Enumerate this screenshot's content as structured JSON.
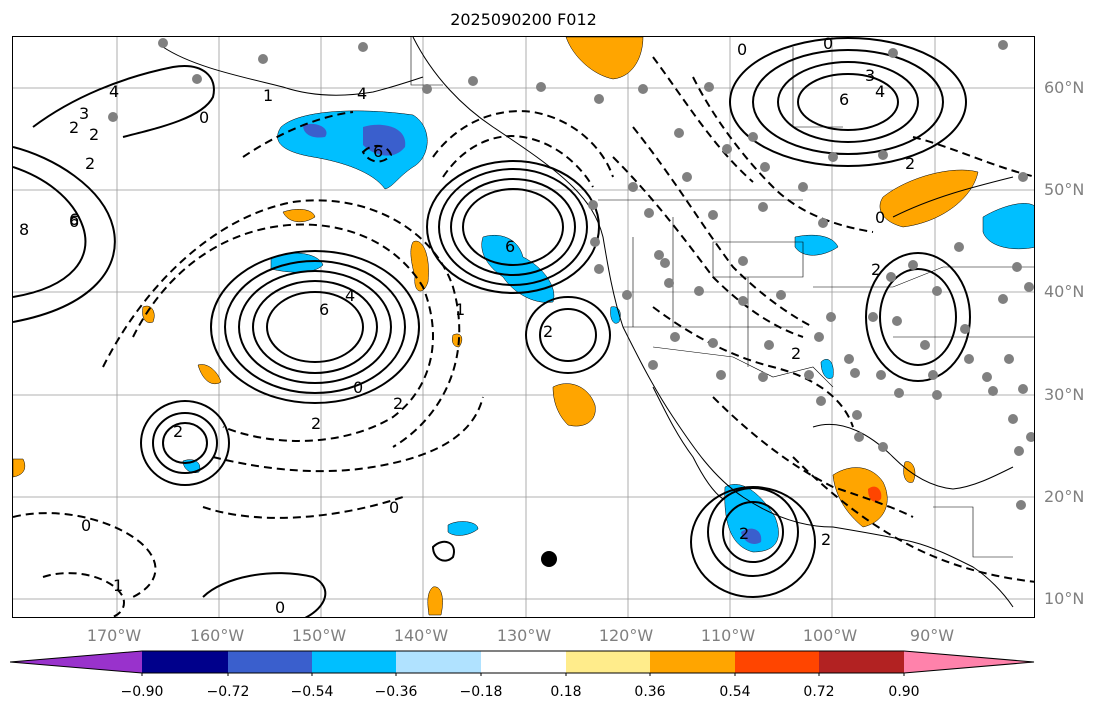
{
  "title": "2025090200 F012",
  "lat_labels": [
    "60°N",
    "50°N",
    "40°N",
    "30°N",
    "20°N",
    "10°N"
  ],
  "lon_labels": [
    "170°W",
    "160°W",
    "150°W",
    "140°W",
    "130°W",
    "120°W",
    "110°W",
    "100°W",
    "90°W"
  ],
  "colorbar": {
    "ticks": [
      "−0.90",
      "−0.72",
      "−0.54",
      "−0.36",
      "−0.18",
      "0.18",
      "0.36",
      "0.54",
      "0.72",
      "0.90"
    ],
    "colors": [
      "#9932cc",
      "#00008b",
      "#3a5fcd",
      "#00bfff",
      "#b0e2ff",
      "#ffffff",
      "#ffec8b",
      "#ffa500",
      "#ff4500",
      "#b22222",
      "#ff82ab"
    ]
  },
  "contour_labels": [
    "4",
    "3",
    "2",
    "2",
    "6",
    "8",
    "2",
    "0",
    "4",
    "6",
    "1",
    "4",
    "6",
    "6",
    "2",
    "0",
    "2",
    "2",
    "0",
    "2",
    "6",
    "0",
    "4",
    "3",
    "6",
    "2",
    "0",
    "2",
    "0",
    "2",
    "2",
    "0",
    "1",
    "2",
    "0",
    "1"
  ],
  "colors": {
    "shade_blue": "#00bfff",
    "shade_dark": "#3a5fcd",
    "shade_orange": "#ffa500",
    "shade_red": "#ff4500",
    "station": "#808080"
  }
}
